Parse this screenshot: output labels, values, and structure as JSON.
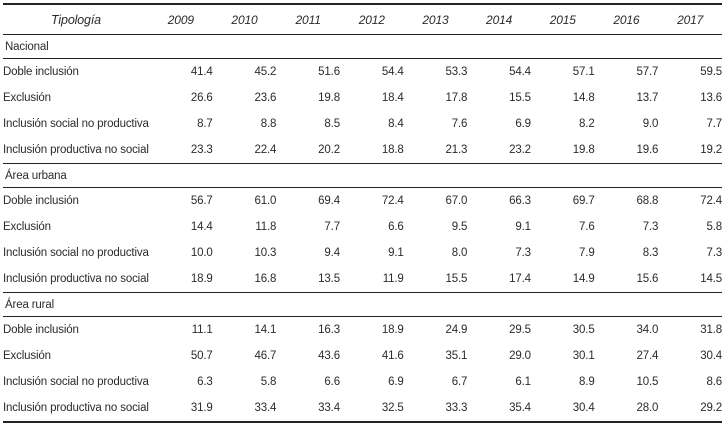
{
  "chart_data": {
    "type": "table",
    "col_header": "Tipología",
    "columns": [
      "2009",
      "2010",
      "2011",
      "2012",
      "2013",
      "2014",
      "2015",
      "2016",
      "2017"
    ],
    "sections": [
      {
        "title": "Nacional",
        "rows": [
          {
            "label": "Doble inclusión",
            "values": [
              "41.4",
              "45.2",
              "51.6",
              "54.4",
              "53.3",
              "54.4",
              "57.1",
              "57.7",
              "59.5"
            ]
          },
          {
            "label": "Exclusión",
            "values": [
              "26.6",
              "23.6",
              "19.8",
              "18.4",
              "17.8",
              "15.5",
              "14.8",
              "13.7",
              "13.6"
            ]
          },
          {
            "label": "Inclusión social no productiva",
            "values": [
              "8.7",
              "8.8",
              "8.5",
              "8.4",
              "7.6",
              "6.9",
              "8.2",
              "9.0",
              "7.7"
            ]
          },
          {
            "label": "Inclusión productiva no social",
            "values": [
              "23.3",
              "22.4",
              "20.2",
              "18.8",
              "21.3",
              "23.2",
              "19.8",
              "19.6",
              "19.2"
            ]
          }
        ]
      },
      {
        "title": "Área urbana",
        "rows": [
          {
            "label": "Doble inclusión",
            "values": [
              "56.7",
              "61.0",
              "69.4",
              "72.4",
              "67.0",
              "66.3",
              "69.7",
              "68.8",
              "72.4"
            ]
          },
          {
            "label": "Exclusión",
            "values": [
              "14.4",
              "11.8",
              "7.7",
              "6.6",
              "9.5",
              "9.1",
              "7.6",
              "7.3",
              "5.8"
            ]
          },
          {
            "label": "Inclusión social no productiva",
            "values": [
              "10.0",
              "10.3",
              "9.4",
              "9.1",
              "8.0",
              "7.3",
              "7.9",
              "8.3",
              "7.3"
            ]
          },
          {
            "label": "Inclusión productiva no social",
            "values": [
              "18.9",
              "16.8",
              "13.5",
              "11.9",
              "15.5",
              "17.4",
              "14.9",
              "15.6",
              "14.5"
            ]
          }
        ]
      },
      {
        "title": "Área rural",
        "rows": [
          {
            "label": "Doble inclusión",
            "values": [
              "11.1",
              "14.1",
              "16.3",
              "18.9",
              "24.9",
              "29.5",
              "30.5",
              "34.0",
              "31.8"
            ]
          },
          {
            "label": "Exclusión",
            "values": [
              "50.7",
              "46.7",
              "43.6",
              "41.6",
              "35.1",
              "29.0",
              "30.1",
              "27.4",
              "30.4"
            ]
          },
          {
            "label": "Inclusión social no productiva",
            "values": [
              "6.3",
              "5.8",
              "6.6",
              "6.9",
              "6.7",
              "6.1",
              "8.9",
              "10.5",
              "8.6"
            ]
          },
          {
            "label": "Inclusión productiva no social",
            "values": [
              "31.9",
              "33.4",
              "33.4",
              "32.5",
              "33.3",
              "35.4",
              "30.4",
              "28.0",
              "29.2"
            ]
          }
        ]
      }
    ],
    "layout": {
      "header_italic": true,
      "values_align": "right",
      "grid": "horizontal-rules-only",
      "legend": "none",
      "colors": {
        "text": "#2b2b2b",
        "rule": "#242424",
        "background": "#ffffff"
      }
    }
  }
}
